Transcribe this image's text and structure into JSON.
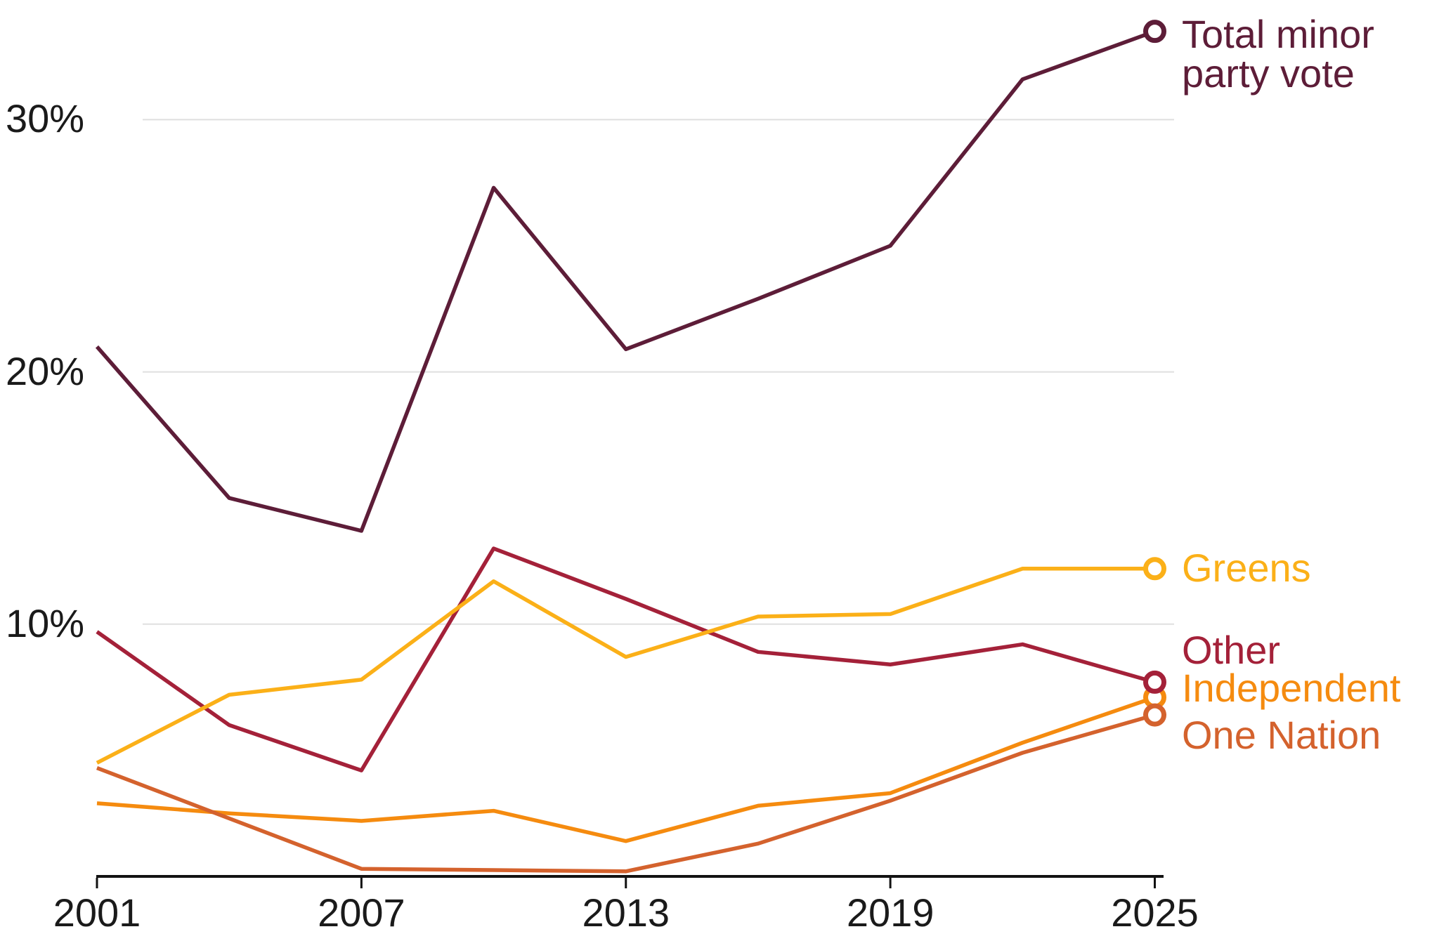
{
  "chart_data": {
    "type": "line",
    "x": [
      2001,
      2004,
      2007,
      2010,
      2013,
      2016,
      2019,
      2022,
      2025
    ],
    "x_tick_years": [
      2001,
      2007,
      2013,
      2019,
      2025
    ],
    "x_tick_labels": [
      "2001",
      "2007",
      "2013",
      "2019",
      "2025"
    ],
    "y_tick_values": [
      30,
      20,
      10
    ],
    "y_tick_labels": [
      "30%",
      "20%",
      "10%"
    ],
    "xlim": [
      2001,
      2025
    ],
    "ylim": [
      0,
      34.5
    ],
    "grid": "horizontal-only",
    "legend_position": "right-end-labels",
    "marker": "open-circle-at-last-point",
    "background_color": "#ffffff",
    "axis_color": "#121212",
    "grid_color": "#dfdfdf",
    "series": [
      {
        "name": "Total minor party vote",
        "label_lines": [
          "Total minor",
          "party vote"
        ],
        "color": "#5d1d38",
        "values": [
          21.0,
          15.0,
          13.7,
          27.3,
          20.9,
          22.9,
          25.0,
          31.6,
          33.5
        ]
      },
      {
        "name": "Greens",
        "label_lines": [
          "Greens"
        ],
        "color": "#fbb018",
        "values": [
          4.5,
          7.2,
          7.8,
          11.7,
          8.7,
          10.3,
          10.4,
          12.2,
          12.2
        ]
      },
      {
        "name": "Other",
        "label_lines": [
          "Other"
        ],
        "color": "#a42139",
        "values": [
          9.7,
          6.0,
          4.2,
          13.0,
          11.0,
          8.9,
          8.4,
          9.2,
          7.7
        ]
      },
      {
        "name": "Independent",
        "label_lines": [
          "Independent"
        ],
        "color": "#f58b0f",
        "values": [
          2.9,
          2.5,
          2.2,
          2.6,
          1.4,
          2.8,
          3.3,
          5.3,
          7.1
        ]
      },
      {
        "name": "One Nation",
        "label_lines": [
          "One Nation"
        ],
        "color": "#d4622d",
        "values": [
          4.3,
          2.3,
          0.3,
          0.25,
          0.2,
          1.3,
          3.0,
          4.9,
          6.4
        ]
      }
    ]
  }
}
